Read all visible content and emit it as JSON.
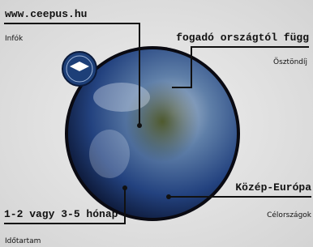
{
  "labels": [
    {
      "title": "www.ceepus.hu",
      "caption": "Infók"
    },
    {
      "title": "fogadó országtól függ",
      "caption": "Ösztöndíj"
    },
    {
      "title": "Közép-Európa",
      "caption": "Célországok"
    },
    {
      "title": "1-2 vagy 3-5 hónap",
      "caption": "Időtartam"
    }
  ]
}
